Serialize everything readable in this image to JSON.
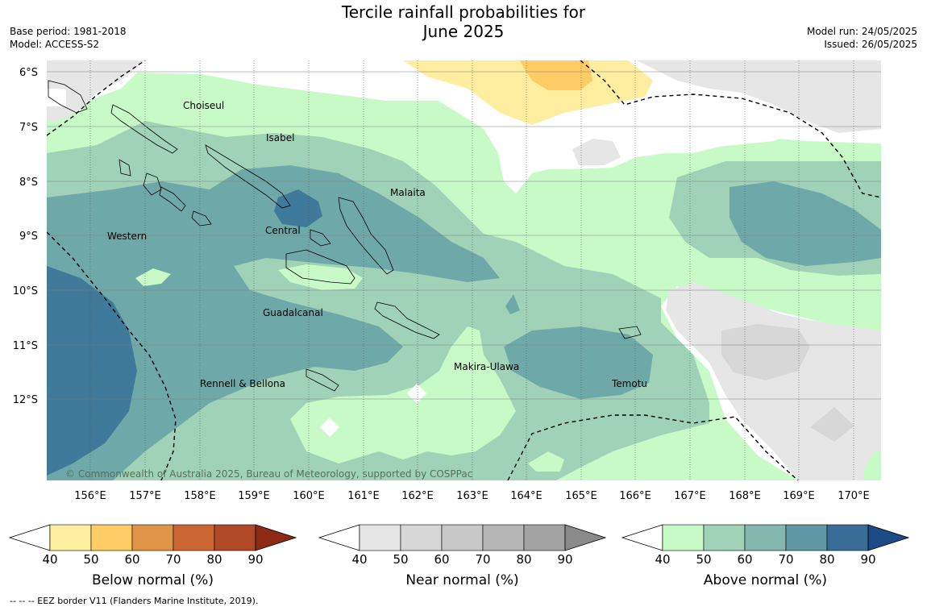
{
  "header": {
    "title_line1": "Tercile rainfall probabilities for",
    "title_line2": "June 2025",
    "base_period": "Base period: 1981-2018",
    "model": "Model: ACCESS-S2",
    "model_run": "Model run: 24/05/2025",
    "issued": "Issued: 26/05/2025"
  },
  "map": {
    "lat_labels": [
      "6°S",
      "7°S",
      "8°S",
      "9°S",
      "10°S",
      "11°S",
      "12°S"
    ],
    "lon_labels": [
      "156°E",
      "157°E",
      "158°E",
      "159°E",
      "160°E",
      "161°E",
      "162°E",
      "163°E",
      "164°E",
      "165°E",
      "166°E",
      "167°E",
      "168°E",
      "169°E",
      "170°E"
    ],
    "regions": [
      "Choiseul",
      "Isabel",
      "Malaita",
      "Central",
      "Western",
      "Guadalcanal",
      "Makira-Ulawa",
      "Rennell & Bellona",
      "Temotu"
    ],
    "copyright": "© Commonwealth of Australia 2025, Bureau of Meteorology, supported by COSPPac"
  },
  "colorbars": [
    {
      "title": "Below normal (%)",
      "ticks": [
        "40",
        "50",
        "60",
        "70",
        "80",
        "90"
      ],
      "colors": [
        "#ffeea0",
        "#ffcc66",
        "#e09448",
        "#cc6633",
        "#b04a26",
        "#8c2a14"
      ]
    },
    {
      "title": "Near normal (%)",
      "ticks": [
        "40",
        "50",
        "60",
        "70",
        "80",
        "90"
      ],
      "colors": [
        "#e6e6e6",
        "#d7d7d7",
        "#c8c8c8",
        "#b6b6b6",
        "#a3a3a3",
        "#8a8a8a"
      ]
    },
    {
      "title": "Above normal (%)",
      "ticks": [
        "40",
        "50",
        "60",
        "70",
        "80",
        "90"
      ],
      "colors": [
        "#c8fac8",
        "#a0d2b8",
        "#84b8ae",
        "#5f97a5",
        "#3a6c98",
        "#1c4a86"
      ]
    }
  ],
  "footnote": "--  --  -- EEZ border V11 (Flanders Marine Institute, 2019)."
}
